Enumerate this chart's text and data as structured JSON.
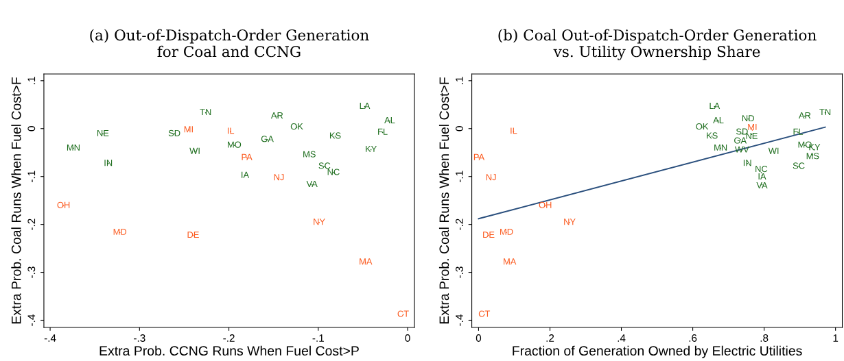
{
  "chart_data": [
    {
      "type": "scatter",
      "title": "(a) Out-of-Dispatch-Order Generation\nfor Coal and CCNG",
      "xlabel": "Extra Prob. CCNG Runs When Fuel Cost>P",
      "ylabel": "Extra Prob. Coal Runs When Fuel Cost>F",
      "marker": "none",
      "grid": false,
      "legend": false,
      "xlim": [
        -0.407,
        0.0076
      ],
      "ylim": [
        -0.415,
        0.114
      ],
      "xticks": [
        {
          "value": -0.4,
          "label": "-.4"
        },
        {
          "value": -0.3,
          "label": "-.3"
        },
        {
          "value": -0.2,
          "label": "-.2"
        },
        {
          "value": -0.1,
          "label": "-.1"
        },
        0
      ],
      "yticks": [
        {
          "value": -0.4,
          "label": "-.4"
        },
        {
          "value": -0.3,
          "label": "-.3"
        },
        {
          "value": -0.2,
          "label": "-.2"
        },
        {
          "value": -0.1,
          "label": "-.1"
        },
        0,
        {
          "value": 0.1,
          "label": ".1"
        }
      ],
      "series": [
        {
          "color": "#1d6d1d",
          "x": [
            -0.226,
            -0.261,
            -0.238,
            -0.194,
            -0.146,
            -0.124,
            -0.157,
            -0.182,
            -0.11,
            -0.081,
            -0.093,
            -0.083,
            -0.107,
            -0.048,
            -0.02,
            -0.028,
            -0.041,
            -0.341,
            -0.374,
            -0.335
          ],
          "values": [
            0.033,
            -0.011,
            -0.048,
            -0.035,
            0.026,
            0.003,
            -0.023,
            -0.098,
            -0.055,
            -0.016,
            -0.079,
            -0.092,
            -0.117,
            0.046,
            0.016,
            -0.008,
            -0.044,
            -0.011,
            -0.041,
            -0.073
          ],
          "value_labels": [
            "TN",
            "SD",
            "WI",
            "MO",
            "AR",
            "OK",
            "GA",
            "IA",
            "MS",
            "KS",
            "SC",
            "NC",
            "VA",
            "LA",
            "AL",
            "FL",
            "KY",
            "NE",
            "MN",
            "IN"
          ]
        },
        {
          "color": "#fb5a1f",
          "x": [
            -0.245,
            -0.198,
            -0.18,
            -0.144,
            -0.385,
            -0.322,
            -0.24,
            -0.099,
            -0.047,
            -0.005
          ],
          "values": [
            -0.003,
            -0.006,
            -0.061,
            -0.103,
            -0.161,
            -0.217,
            -0.223,
            -0.196,
            -0.279,
            -0.388
          ],
          "value_labels": [
            "MI",
            "IL",
            "PA",
            "NJ",
            "OH",
            "MD",
            "DE",
            "NY",
            "MA",
            "CT"
          ]
        }
      ]
    },
    {
      "type": "scatter",
      "title": "(b) Coal Out-of-Dispatch-Order Generation\nvs. Utility Ownership Share",
      "xlabel": "Fraction of Generation Owned by Electric Utilities",
      "ylabel": "Extra Prob. Coal Runs When Fuel Cost>F",
      "marker": "none",
      "grid": false,
      "legend": false,
      "xlim": [
        -0.019,
        1.019
      ],
      "ylim": [
        -0.415,
        0.114
      ],
      "xticks": [
        0,
        {
          "value": 0.2,
          "label": ".2"
        },
        {
          "value": 0.4,
          "label": ".4"
        },
        {
          "value": 0.6,
          "label": ".6"
        },
        {
          "value": 0.8,
          "label": ".8"
        },
        1
      ],
      "yticks": [
        {
          "value": -0.4,
          "label": "-.4"
        },
        {
          "value": -0.3,
          "label": "-.3"
        },
        {
          "value": -0.2,
          "label": "-.2"
        },
        {
          "value": -0.1,
          "label": "-.1"
        },
        0,
        {
          "value": 0.1,
          "label": ".1"
        }
      ],
      "series": [
        {
          "color": "#1d6d1d",
          "x": [
            0.661,
            0.672,
            0.626,
            0.654,
            0.678,
            0.755,
            0.738,
            0.765,
            0.733,
            0.738,
            0.753,
            0.792,
            0.794,
            0.794,
            0.827,
            0.914,
            0.971,
            0.895,
            0.914,
            0.941,
            0.936,
            0.897
          ],
          "values": [
            0.046,
            0.016,
            0.003,
            -0.016,
            -0.041,
            0.02,
            -0.011,
            -0.012,
            -0.023,
            -0.045,
            -0.073,
            -0.092,
            -0.098,
            -0.117,
            -0.048,
            0.026,
            0.033,
            -0.008,
            -0.035,
            -0.044,
            -0.055,
            -0.079
          ],
          "value_labels": [
            "LA",
            "AL",
            "OK",
            "KS",
            "MN",
            "ND",
            "SD",
            "NE",
            "GA",
            "WV",
            "IN",
            "NC",
            "IA",
            "VA",
            "WI",
            "AR",
            "TN",
            "FL",
            "MO",
            "KY",
            "MS",
            "SC"
          ]
        },
        {
          "color": "#fb5a1f",
          "x": [
            0.767,
            0.098,
            0.001,
            0.035,
            0.187,
            0.255,
            0.028,
            0.078,
            0.087,
            0.016
          ],
          "values": [
            -0.003,
            -0.006,
            -0.061,
            -0.103,
            -0.161,
            -0.196,
            -0.223,
            -0.217,
            -0.279,
            -0.388
          ],
          "value_labels": [
            "MI",
            "IL",
            "PA",
            "NJ",
            "OH",
            "NY",
            "DE",
            "MD",
            "MA",
            "CT"
          ]
        },
        {
          "type": "line",
          "color": "#2a4f7d",
          "x": [
            0,
            0.971
          ],
          "values": [
            -0.188,
            0.003
          ]
        }
      ]
    }
  ]
}
